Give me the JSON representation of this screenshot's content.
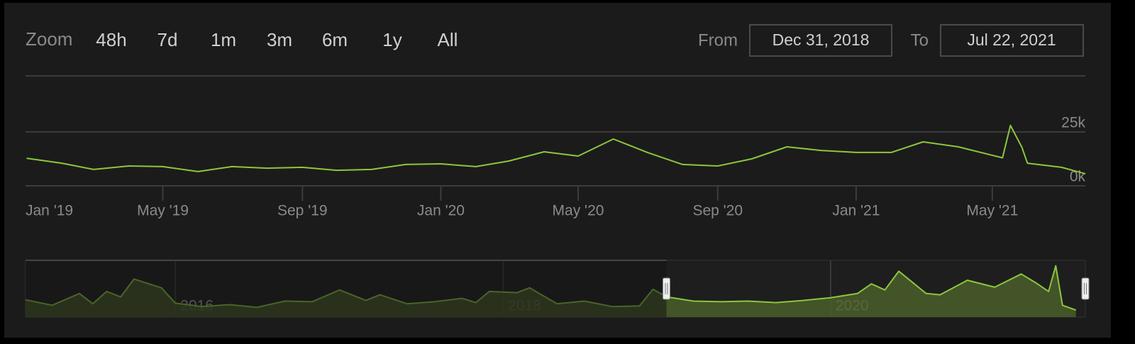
{
  "zoom": {
    "label": "Zoom",
    "buttons": [
      "48h",
      "7d",
      "1m",
      "3m",
      "6m",
      "1y",
      "All"
    ]
  },
  "range": {
    "from_label": "From",
    "from": "Dec 31, 2018",
    "to_label": "To",
    "to": "Jul 22, 2021"
  },
  "chart_data": [
    {
      "type": "line",
      "xlim": [
        "2018-12-31",
        "2021-07-22"
      ],
      "ylim": [
        0,
        50000
      ],
      "yticks": [
        {
          "value": 0,
          "label": "0k"
        },
        {
          "value": 25000,
          "label": "25k"
        }
      ],
      "xticks": [
        {
          "value": "2019-01",
          "label": "Jan '19"
        },
        {
          "value": "2019-05",
          "label": "May '19"
        },
        {
          "value": "2019-09",
          "label": "Sep '19"
        },
        {
          "value": "2020-01",
          "label": "Jan '20"
        },
        {
          "value": "2020-05",
          "label": "May '20"
        },
        {
          "value": "2020-09",
          "label": "Sep '20"
        },
        {
          "value": "2021-01",
          "label": "Jan '21"
        },
        {
          "value": "2021-05",
          "label": "May '21"
        }
      ],
      "grid": true,
      "x": [
        "2019-01",
        "2019-02",
        "2019-03",
        "2019-04",
        "2019-05",
        "2019-06",
        "2019-07",
        "2019-08",
        "2019-09",
        "2019-10",
        "2019-11",
        "2019-12",
        "2020-01",
        "2020-02",
        "2020-03",
        "2020-04",
        "2020-05",
        "2020-06",
        "2020-07",
        "2020-08",
        "2020-09",
        "2020-10",
        "2020-11",
        "2020-12",
        "2021-01",
        "2021-02",
        "2021-03",
        "2021-04",
        "2021-05-10",
        "2021-05-17",
        "2021-05-27",
        "2021-06",
        "2021-07",
        "2021-07-22"
      ],
      "series": [
        {
          "color": "#8cc63f",
          "values": [
            12800,
            10500,
            7600,
            9200,
            8900,
            6600,
            8900,
            8200,
            8600,
            7200,
            7600,
            9900,
            10200,
            8900,
            11500,
            15800,
            13800,
            21700,
            15500,
            9900,
            9200,
            12500,
            18100,
            16400,
            15500,
            15500,
            20400,
            18100,
            13000,
            28000,
            18000,
            10500,
            8600,
            5600
          ]
        }
      ]
    },
    {
      "type": "area",
      "xlim": [
        "2015-02-01",
        "2021-07-22"
      ],
      "ylim": [
        0,
        27000
      ],
      "xticks": [
        {
          "value": "2016-01",
          "label": "2016"
        },
        {
          "value": "2018-01",
          "label": "2018"
        },
        {
          "value": "2020-01",
          "label": "2020"
        }
      ],
      "x": [
        "2015-02",
        "2015-04",
        "2015-06",
        "2015-07",
        "2015-08",
        "2015-09",
        "2015-10",
        "2015-12",
        "2016-01",
        "2016-03",
        "2016-05",
        "2016-07",
        "2016-09",
        "2016-11",
        "2017-01",
        "2017-03",
        "2017-04",
        "2017-06",
        "2017-08",
        "2017-10",
        "2017-11",
        "2017-12",
        "2018-02",
        "2018-03",
        "2018-05",
        "2018-07",
        "2018-09",
        "2018-11",
        "2018-12",
        "2019-01",
        "2019-03",
        "2019-05",
        "2019-07",
        "2019-09",
        "2019-11",
        "2020-01",
        "2020-03",
        "2020-04",
        "2020-05",
        "2020-06",
        "2020-08",
        "2020-09",
        "2020-11",
        "2021-01",
        "2021-03",
        "2021-04",
        "2021-05",
        "2021-05-17",
        "2021-06",
        "2021-07"
      ],
      "series": [
        {
          "color": "#8cc63f",
          "values": [
            8200,
            5600,
            11200,
            6300,
            12200,
            9600,
            18100,
            13900,
            6600,
            5000,
            5900,
            4600,
            7600,
            7300,
            12900,
            7900,
            10600,
            6300,
            7300,
            8900,
            6900,
            12200,
            11600,
            13900,
            6300,
            7600,
            5000,
            5300,
            13200,
            9600,
            7600,
            7300,
            7600,
            6900,
            7900,
            9200,
            11200,
            15800,
            12900,
            21800,
            11200,
            10600,
            17500,
            14200,
            20500,
            16500,
            12200,
            24400,
            5600,
            3300
          ]
        }
      ]
    }
  ]
}
